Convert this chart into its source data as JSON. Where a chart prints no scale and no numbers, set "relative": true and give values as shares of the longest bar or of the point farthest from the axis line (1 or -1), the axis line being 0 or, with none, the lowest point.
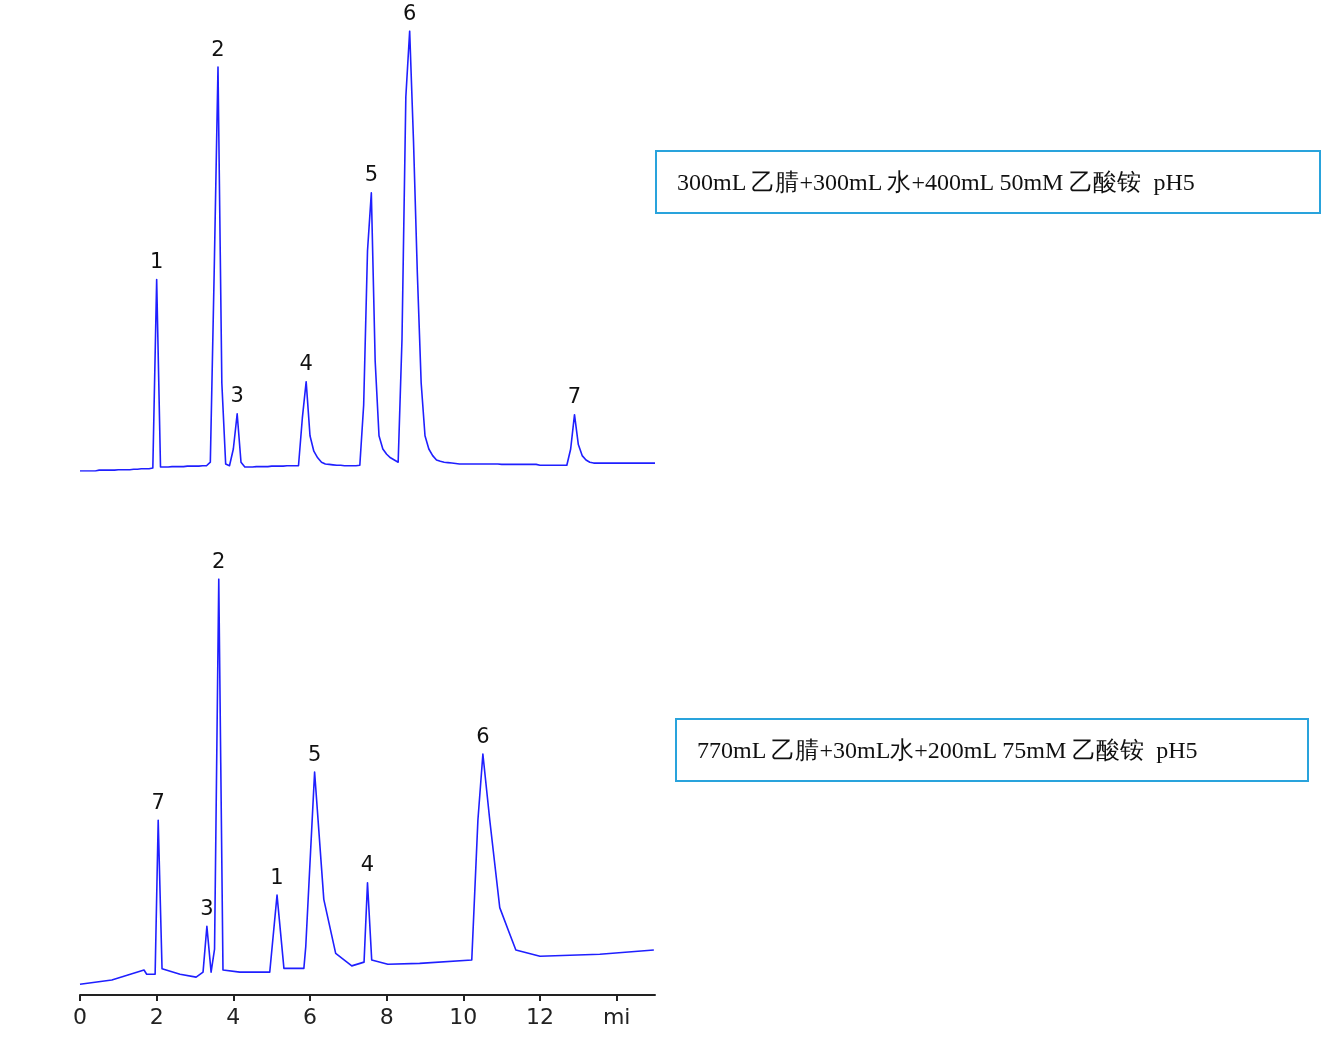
{
  "chart_data": [
    {
      "type": "line",
      "relative": true,
      "tick_labels": false,
      "grid": false,
      "marker": "none",
      "line_style": "solid",
      "categories": [
        null,
        null,
        null,
        null,
        null,
        null,
        null,
        null,
        null,
        null,
        null,
        null,
        null,
        null,
        null,
        null,
        null,
        null,
        null,
        null,
        null,
        null,
        null,
        null,
        null,
        null,
        null,
        null,
        null,
        null,
        null,
        null,
        null,
        null,
        null,
        null,
        null,
        null,
        null,
        null,
        null,
        null,
        null,
        null,
        null,
        null,
        null,
        null,
        null,
        null,
        null,
        null,
        null,
        null,
        null,
        null,
        null,
        null,
        null,
        null,
        null,
        null,
        null,
        null,
        null,
        null,
        null,
        null,
        null,
        null,
        null,
        null,
        null,
        null,
        null,
        null,
        null,
        null,
        null,
        null,
        null,
        null,
        null,
        null,
        null,
        null,
        null,
        null,
        null,
        null,
        null,
        null,
        null,
        null,
        null,
        null,
        null,
        null,
        null,
        null,
        null,
        null,
        null,
        null,
        null,
        null,
        null,
        null,
        null,
        null,
        null,
        null,
        null,
        null,
        null,
        null,
        null,
        null,
        null,
        null,
        null,
        null,
        null,
        null,
        null,
        null,
        null,
        null,
        null,
        null,
        null,
        null,
        null,
        null,
        null,
        null,
        null,
        null,
        null,
        null,
        null,
        null,
        null,
        null,
        null,
        null,
        null,
        null,
        null,
        null,
        null
      ],
      "series": [
        {
          "color": "#1f1fff",
          "values": [
            0,
            0,
            0,
            0,
            0,
            0.002,
            0.002,
            0.002,
            0.002,
            0.002,
            0.003,
            0.003,
            0.003,
            0.003,
            0.004,
            0.004,
            0.005,
            0.005,
            0.005,
            0.007,
            0.435,
            0.009,
            0.009,
            0.009,
            0.01,
            0.01,
            0.01,
            0.01,
            0.011,
            0.011,
            0.011,
            0.011,
            0.012,
            0.012,
            0.02,
            0.45,
            0.918,
            0.2,
            0.016,
            0.012,
            0.05,
            0.13,
            0.02,
            0.009,
            0.009,
            0.009,
            0.01,
            0.01,
            0.01,
            0.01,
            0.011,
            0.011,
            0.011,
            0.011,
            0.012,
            0.012,
            0.012,
            0.012,
            0.12,
            0.203,
            0.08,
            0.045,
            0.03,
            0.02,
            0.016,
            0.015,
            0.014,
            0.013,
            0.013,
            0.012,
            0.012,
            0.012,
            0.012,
            0.013,
            0.15,
            0.5,
            0.632,
            0.25,
            0.08,
            0.05,
            0.038,
            0.03,
            0.025,
            0.02,
            0.3,
            0.85,
            1,
            0.75,
            0.45,
            0.2,
            0.08,
            0.05,
            0.035,
            0.025,
            0.022,
            0.02,
            0.019,
            0.018,
            0.017,
            0.016,
            0.016,
            0.016,
            0.016,
            0.016,
            0.016,
            0.016,
            0.016,
            0.016,
            0.016,
            0.016,
            0.015,
            0.015,
            0.015,
            0.015,
            0.015,
            0.015,
            0.015,
            0.015,
            0.015,
            0.015,
            0.013,
            0.013,
            0.013,
            0.013,
            0.013,
            0.013,
            0.013,
            0.013,
            0.05,
            0.128,
            0.06,
            0.035,
            0.025,
            0.02,
            0.018,
            0.018,
            0.018,
            0.018,
            0.018,
            0.018,
            0.018,
            0.018,
            0.018,
            0.018,
            0.018,
            0.018,
            0.018,
            0.018,
            0.018,
            0.018,
            0.018
          ]
        }
      ],
      "annotations": [
        {
          "text": "1",
          "y": 0.435
        },
        {
          "text": "2",
          "y": 0.918
        },
        {
          "text": "3",
          "y": 0.13
        },
        {
          "text": "4",
          "y": 0.203
        },
        {
          "text": "5",
          "y": 0.632
        },
        {
          "text": "6",
          "y": 1
        },
        {
          "text": "7",
          "y": 0.128
        },
        "300mL 乙腈+300mL 水+400mL 50mM 乙酸铵  pH5"
      ]
    },
    {
      "type": "line",
      "relative": true,
      "tick_labels": "x",
      "grid": false,
      "marker": "none",
      "line_style": "solid",
      "xlim": [
        0,
        15
      ],
      "xticks": [
        0,
        2,
        4,
        6,
        8,
        10,
        12,
        {
          "value": 14,
          "label": "mi"
        }
      ],
      "x": [
        0,
        0.83,
        1.67,
        1.74,
        1.96,
        2.04,
        2.14,
        2.61,
        3.03,
        3.21,
        3.31,
        3.42,
        3.51,
        3.62,
        3.73,
        4.17,
        4.95,
        5.14,
        5.32,
        5.84,
        5.89,
        6.12,
        6.36,
        6.67,
        7.09,
        7.41,
        7.5,
        7.61,
        8.03,
        8.86,
        10.22,
        10.38,
        10.51,
        10.69,
        10.95,
        11.37,
        12,
        13.56,
        14.97
      ],
      "series": [
        {
          "color": "#1f1fff",
          "values": [
            0.026,
            0.036,
            0.06,
            0.05,
            0.05,
            0.42,
            0.063,
            0.05,
            0.043,
            0.055,
            0.165,
            0.055,
            0.11,
            1,
            0.06,
            0.055,
            0.055,
            0.24,
            0.064,
            0.064,
            0.117,
            0.536,
            0.23,
            0.1,
            0.07,
            0.079,
            0.27,
            0.084,
            0.074,
            0.076,
            0.084,
            0.42,
            0.579,
            0.42,
            0.21,
            0.108,
            0.093,
            0.098,
            0.108
          ]
        }
      ],
      "annotations": [
        {
          "text": "7",
          "x": 2.04,
          "y": 0.42
        },
        {
          "text": "3",
          "x": 3.31,
          "y": 0.165
        },
        {
          "text": "2",
          "x": 3.62,
          "y": 1
        },
        {
          "text": "1",
          "x": 5.14,
          "y": 0.24
        },
        {
          "text": "5",
          "x": 6.12,
          "y": 0.536
        },
        {
          "text": "4",
          "x": 7.5,
          "y": 0.27
        },
        {
          "text": "6",
          "x": 10.51,
          "y": 0.579
        },
        "770mL 乙腈+30mL水+200mL 75mM 乙酸铵  pH5"
      ]
    }
  ]
}
